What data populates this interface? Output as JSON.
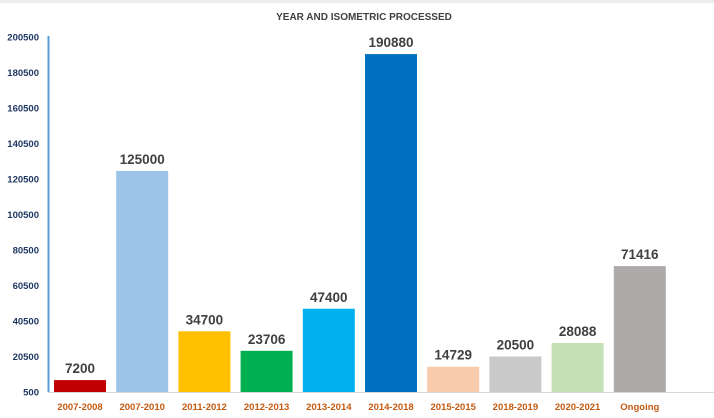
{
  "chart_data": {
    "type": "bar",
    "title": "YEAR  AND ISOMETRIC PROCESSED",
    "xlabel": "",
    "ylabel": "",
    "ylim": [
      500,
      200500
    ],
    "yticks": [
      500,
      20500,
      40500,
      60500,
      80500,
      100500,
      120500,
      140500,
      160500,
      180500,
      200500
    ],
    "grid": false,
    "legend": "none",
    "categories": [
      "2007-2008",
      "2007-2010",
      "2011-2012",
      "2012-2013",
      "2013-2014",
      "2014-2018",
      "2015-2015",
      "2018-2019",
      "2020-2021",
      "Ongoing"
    ],
    "values": [
      7200,
      125000,
      34700,
      23706,
      47400,
      190880,
      14729,
      20500,
      28088,
      71416
    ],
    "colors": [
      "#c00000",
      "#9dc3e6",
      "#ffc000",
      "#00b050",
      "#00b0f0",
      "#0070c0",
      "#f8cbad",
      "#c9c9c9",
      "#c5e0b4",
      "#aeaaaa"
    ],
    "axis_color": "#5b9bd5"
  }
}
